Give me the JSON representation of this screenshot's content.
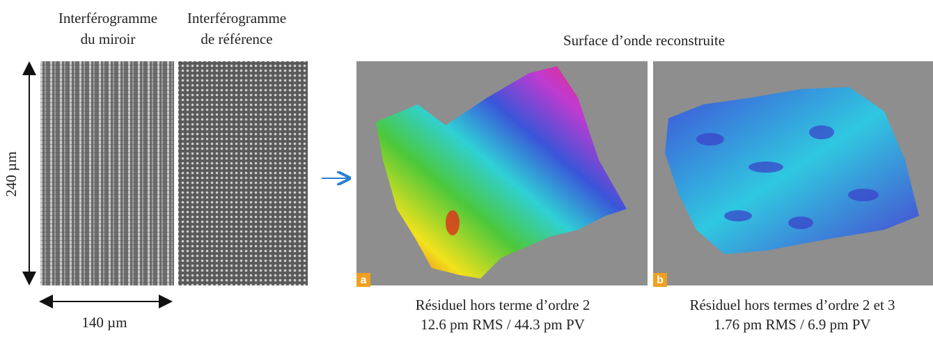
{
  "left": {
    "mirror_title": [
      "Interférogramme",
      "du miroir"
    ],
    "reference_title": [
      "Interférogramme",
      "de référence"
    ],
    "height_label": "240 µm",
    "width_label": "140 µm"
  },
  "right": {
    "title": "Surface d’onde reconstruite",
    "panels": [
      {
        "tag": "a",
        "caption": [
          "Résiduel hors terme d’ordre 2",
          "12.6 pm RMS / 44.3 pm PV"
        ]
      },
      {
        "tag": "b",
        "caption": [
          "Résiduel hors termes d’ordre 2 et 3",
          "1.76 pm RMS / 6.9 pm PV"
        ]
      }
    ]
  }
}
